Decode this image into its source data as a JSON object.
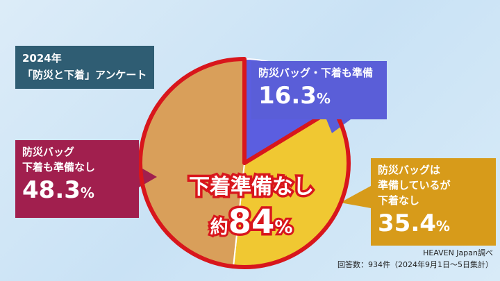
{
  "title": {
    "line1": "2024年",
    "line2": "「防災と下着」アンケート"
  },
  "chart_data": {
    "type": "pie",
    "slices": [
      {
        "label_line1": "防災バッグ・下着も準備",
        "label_line2": "",
        "label_line3": "",
        "value": 16.3,
        "display": "16.3",
        "unit": "%",
        "color": "#5b5ee0"
      },
      {
        "label_line1": "防災バッグは",
        "label_line2": "準備しているが",
        "label_line3": "下着なし",
        "value": 35.4,
        "display": "35.4",
        "unit": "%",
        "color": "#f0c832"
      },
      {
        "label_line1": "防災バッグ",
        "label_line2": "下着も準備なし",
        "label_line3": "",
        "value": 48.3,
        "display": "48.3",
        "unit": "%",
        "color": "#d99f5a"
      }
    ],
    "highlight": {
      "label": "下着準備なし",
      "prefix": "約",
      "value": "84",
      "unit": "%",
      "outline_color": "#d8161c"
    }
  },
  "source": {
    "line1": "HEAVEN Japan調べ",
    "line2": "回答数：934件（2024年9月1日〜5日集計）"
  }
}
